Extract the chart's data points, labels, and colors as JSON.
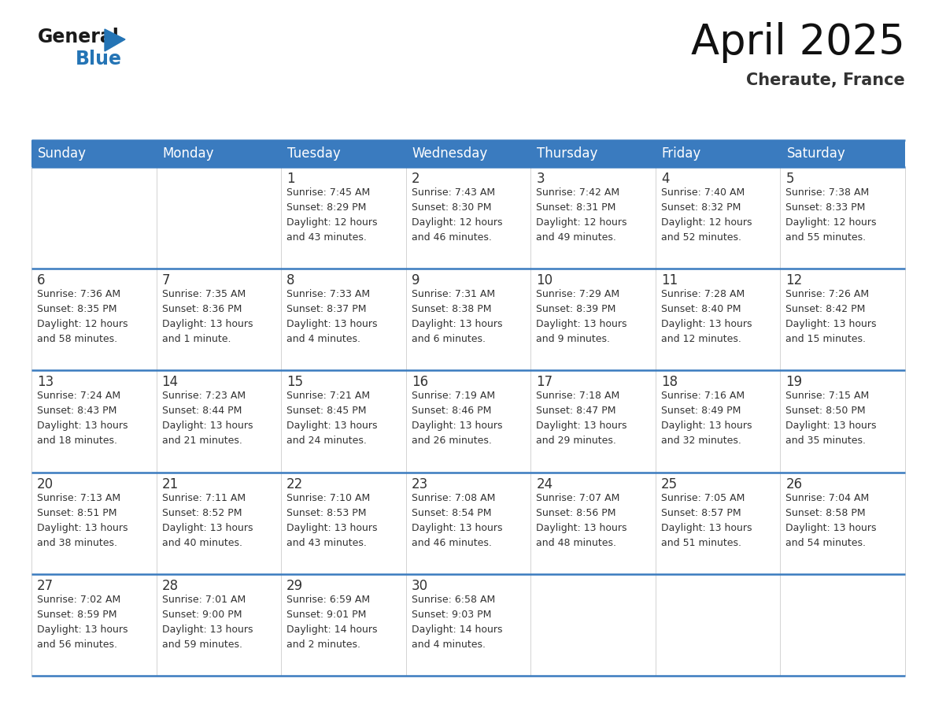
{
  "title": "April 2025",
  "subtitle": "Cheraute, France",
  "header_color": "#3a7bbf",
  "header_text_color": "#ffffff",
  "cell_bg_color": "#ffffff",
  "border_color": "#3a7bbf",
  "text_color": "#333333",
  "days_of_week": [
    "Sunday",
    "Monday",
    "Tuesday",
    "Wednesday",
    "Thursday",
    "Friday",
    "Saturday"
  ],
  "weeks": [
    [
      {
        "day": "",
        "info": ""
      },
      {
        "day": "",
        "info": ""
      },
      {
        "day": "1",
        "info": "Sunrise: 7:45 AM\nSunset: 8:29 PM\nDaylight: 12 hours\nand 43 minutes."
      },
      {
        "day": "2",
        "info": "Sunrise: 7:43 AM\nSunset: 8:30 PM\nDaylight: 12 hours\nand 46 minutes."
      },
      {
        "day": "3",
        "info": "Sunrise: 7:42 AM\nSunset: 8:31 PM\nDaylight: 12 hours\nand 49 minutes."
      },
      {
        "day": "4",
        "info": "Sunrise: 7:40 AM\nSunset: 8:32 PM\nDaylight: 12 hours\nand 52 minutes."
      },
      {
        "day": "5",
        "info": "Sunrise: 7:38 AM\nSunset: 8:33 PM\nDaylight: 12 hours\nand 55 minutes."
      }
    ],
    [
      {
        "day": "6",
        "info": "Sunrise: 7:36 AM\nSunset: 8:35 PM\nDaylight: 12 hours\nand 58 minutes."
      },
      {
        "day": "7",
        "info": "Sunrise: 7:35 AM\nSunset: 8:36 PM\nDaylight: 13 hours\nand 1 minute."
      },
      {
        "day": "8",
        "info": "Sunrise: 7:33 AM\nSunset: 8:37 PM\nDaylight: 13 hours\nand 4 minutes."
      },
      {
        "day": "9",
        "info": "Sunrise: 7:31 AM\nSunset: 8:38 PM\nDaylight: 13 hours\nand 6 minutes."
      },
      {
        "day": "10",
        "info": "Sunrise: 7:29 AM\nSunset: 8:39 PM\nDaylight: 13 hours\nand 9 minutes."
      },
      {
        "day": "11",
        "info": "Sunrise: 7:28 AM\nSunset: 8:40 PM\nDaylight: 13 hours\nand 12 minutes."
      },
      {
        "day": "12",
        "info": "Sunrise: 7:26 AM\nSunset: 8:42 PM\nDaylight: 13 hours\nand 15 minutes."
      }
    ],
    [
      {
        "day": "13",
        "info": "Sunrise: 7:24 AM\nSunset: 8:43 PM\nDaylight: 13 hours\nand 18 minutes."
      },
      {
        "day": "14",
        "info": "Sunrise: 7:23 AM\nSunset: 8:44 PM\nDaylight: 13 hours\nand 21 minutes."
      },
      {
        "day": "15",
        "info": "Sunrise: 7:21 AM\nSunset: 8:45 PM\nDaylight: 13 hours\nand 24 minutes."
      },
      {
        "day": "16",
        "info": "Sunrise: 7:19 AM\nSunset: 8:46 PM\nDaylight: 13 hours\nand 26 minutes."
      },
      {
        "day": "17",
        "info": "Sunrise: 7:18 AM\nSunset: 8:47 PM\nDaylight: 13 hours\nand 29 minutes."
      },
      {
        "day": "18",
        "info": "Sunrise: 7:16 AM\nSunset: 8:49 PM\nDaylight: 13 hours\nand 32 minutes."
      },
      {
        "day": "19",
        "info": "Sunrise: 7:15 AM\nSunset: 8:50 PM\nDaylight: 13 hours\nand 35 minutes."
      }
    ],
    [
      {
        "day": "20",
        "info": "Sunrise: 7:13 AM\nSunset: 8:51 PM\nDaylight: 13 hours\nand 38 minutes."
      },
      {
        "day": "21",
        "info": "Sunrise: 7:11 AM\nSunset: 8:52 PM\nDaylight: 13 hours\nand 40 minutes."
      },
      {
        "day": "22",
        "info": "Sunrise: 7:10 AM\nSunset: 8:53 PM\nDaylight: 13 hours\nand 43 minutes."
      },
      {
        "day": "23",
        "info": "Sunrise: 7:08 AM\nSunset: 8:54 PM\nDaylight: 13 hours\nand 46 minutes."
      },
      {
        "day": "24",
        "info": "Sunrise: 7:07 AM\nSunset: 8:56 PM\nDaylight: 13 hours\nand 48 minutes."
      },
      {
        "day": "25",
        "info": "Sunrise: 7:05 AM\nSunset: 8:57 PM\nDaylight: 13 hours\nand 51 minutes."
      },
      {
        "day": "26",
        "info": "Sunrise: 7:04 AM\nSunset: 8:58 PM\nDaylight: 13 hours\nand 54 minutes."
      }
    ],
    [
      {
        "day": "27",
        "info": "Sunrise: 7:02 AM\nSunset: 8:59 PM\nDaylight: 13 hours\nand 56 minutes."
      },
      {
        "day": "28",
        "info": "Sunrise: 7:01 AM\nSunset: 9:00 PM\nDaylight: 13 hours\nand 59 minutes."
      },
      {
        "day": "29",
        "info": "Sunrise: 6:59 AM\nSunset: 9:01 PM\nDaylight: 14 hours\nand 2 minutes."
      },
      {
        "day": "30",
        "info": "Sunrise: 6:58 AM\nSunset: 9:03 PM\nDaylight: 14 hours\nand 4 minutes."
      },
      {
        "day": "",
        "info": ""
      },
      {
        "day": "",
        "info": ""
      },
      {
        "day": "",
        "info": ""
      }
    ]
  ],
  "logo_general_color": "#1a1a1a",
  "logo_blue_color": "#2474b5",
  "logo_triangle_color": "#2474b5",
  "title_fontsize": 38,
  "subtitle_fontsize": 15,
  "header_fontsize": 12,
  "day_num_fontsize": 12,
  "info_fontsize": 9
}
